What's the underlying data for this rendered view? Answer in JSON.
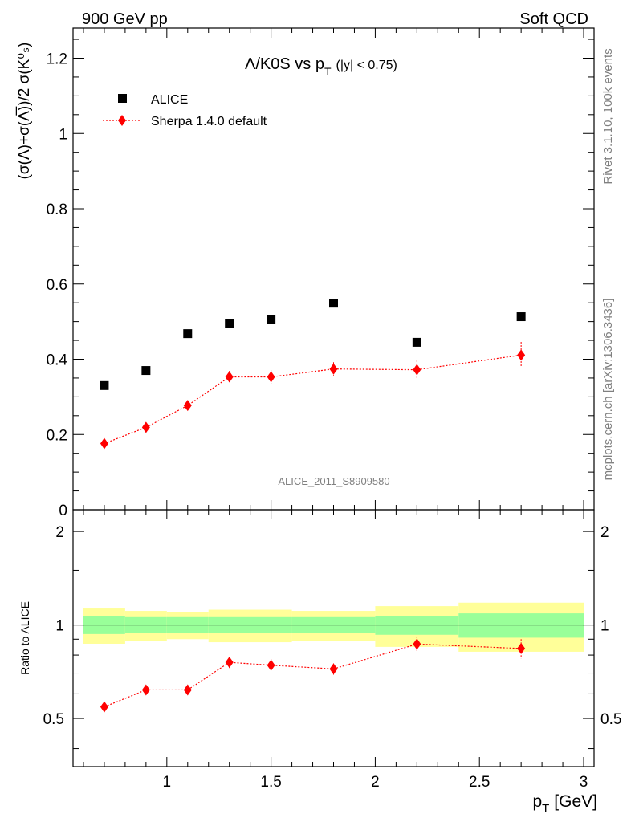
{
  "header": {
    "left": "900 GeV pp",
    "right": "Soft QCD"
  },
  "side_labels": {
    "rivet": "Rivet 3.1.10,  100k events",
    "mcplots": "mcplots.cern.ch [arXiv:1306.3436]"
  },
  "chart_data": {
    "type": "scatter",
    "title": {
      "main": "Λ/K0S vs p",
      "sub": "T",
      "cut": "(|y| < 0.75)"
    },
    "analysis_id": "ALICE_2011_S8909580",
    "xlabel": {
      "main": "p",
      "sub": "T",
      "unit": "[GeV]"
    },
    "ylabel": "(σ(Λ)+σ(Λ̅))/2 σ(K⁰ₛ)",
    "xlim": [
      0.55,
      3.05
    ],
    "ylim": [
      0,
      1.28
    ],
    "x_ticks": [
      "1",
      "1.5",
      "2",
      "2.5",
      "3"
    ],
    "y_ticks": [
      "0",
      "0.2",
      "0.4",
      "0.6",
      "0.8",
      "1",
      "1.2"
    ],
    "series": [
      {
        "name": "ALICE",
        "marker": "square",
        "color": "#000000",
        "x": [
          0.7,
          0.9,
          1.1,
          1.3,
          1.5,
          1.8,
          2.2,
          2.7
        ],
        "y": [
          0.33,
          0.37,
          0.468,
          0.494,
          0.505,
          0.549,
          0.445,
          0.513
        ]
      },
      {
        "name": "Sherpa 1.4.0 default",
        "marker": "diamond",
        "color": "#ff0000",
        "x": [
          0.7,
          0.9,
          1.1,
          1.3,
          1.5,
          1.8,
          2.2,
          2.7
        ],
        "y": [
          0.176,
          0.219,
          0.277,
          0.353,
          0.353,
          0.374,
          0.372,
          0.411
        ],
        "err": [
          0.008,
          0.008,
          0.01,
          0.016,
          0.018,
          0.018,
          0.025,
          0.035
        ]
      }
    ],
    "ratio": {
      "ylabel": "Ratio to ALICE",
      "ylim": [
        0.35,
        2.35
      ],
      "y_ticks": [
        "0.5",
        "1",
        "2"
      ],
      "bins": [
        {
          "lo": 0.6,
          "hi": 0.8,
          "stat": 0.065,
          "tot": 0.13
        },
        {
          "lo": 0.8,
          "hi": 1.0,
          "stat": 0.06,
          "tot": 0.11
        },
        {
          "lo": 1.0,
          "hi": 1.2,
          "stat": 0.06,
          "tot": 0.1
        },
        {
          "lo": 1.2,
          "hi": 1.4,
          "stat": 0.06,
          "tot": 0.12
        },
        {
          "lo": 1.4,
          "hi": 1.6,
          "stat": 0.06,
          "tot": 0.12
        },
        {
          "lo": 1.6,
          "hi": 2.0,
          "stat": 0.06,
          "tot": 0.11
        },
        {
          "lo": 2.0,
          "hi": 2.4,
          "stat": 0.07,
          "tot": 0.15
        },
        {
          "lo": 2.4,
          "hi": 3.0,
          "stat": 0.09,
          "tot": 0.18
        }
      ],
      "sherpa_ratio": [
        0.545,
        0.618,
        0.618,
        0.758,
        0.742,
        0.722,
        0.868,
        0.84
      ],
      "sherpa_ratio_err": [
        0.015,
        0.02,
        0.022,
        0.032,
        0.035,
        0.03,
        0.05,
        0.06
      ]
    }
  }
}
